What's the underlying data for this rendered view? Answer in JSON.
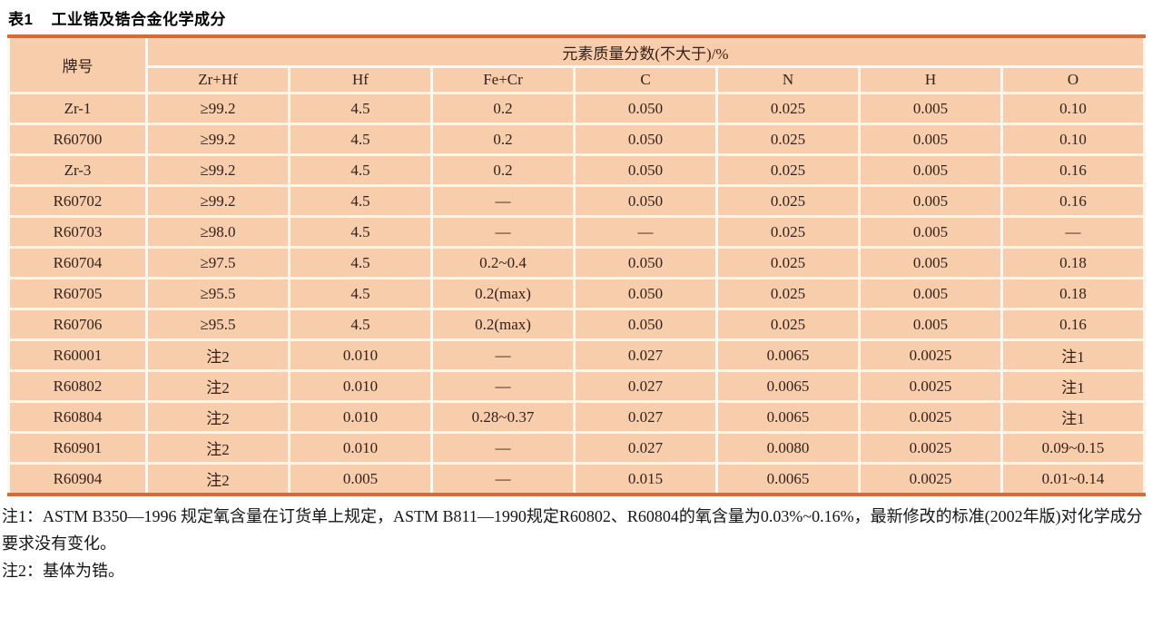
{
  "title": {
    "label": "表1",
    "caption": "工业锆及锆合金化学成分"
  },
  "table": {
    "row_header": "牌号",
    "group_header": "元素质量分数(不大于)/%",
    "columns": [
      "Zr+Hf",
      "Hf",
      "Fe+Cr",
      "C",
      "N",
      "H",
      "O"
    ],
    "rows": [
      {
        "grade": "Zr-1",
        "values": [
          "≥99.2",
          "4.5",
          "0.2",
          "0.050",
          "0.025",
          "0.005",
          "0.10"
        ]
      },
      {
        "grade": "R60700",
        "values": [
          "≥99.2",
          "4.5",
          "0.2",
          "0.050",
          "0.025",
          "0.005",
          "0.10"
        ]
      },
      {
        "grade": "Zr-3",
        "values": [
          "≥99.2",
          "4.5",
          "0.2",
          "0.050",
          "0.025",
          "0.005",
          "0.16"
        ]
      },
      {
        "grade": "R60702",
        "values": [
          "≥99.2",
          "4.5",
          "—",
          "0.050",
          "0.025",
          "0.005",
          "0.16"
        ]
      },
      {
        "grade": "R60703",
        "values": [
          "≥98.0",
          "4.5",
          "—",
          "—",
          "0.025",
          "0.005",
          "—"
        ]
      },
      {
        "grade": "R60704",
        "values": [
          "≥97.5",
          "4.5",
          "0.2~0.4",
          "0.050",
          "0.025",
          "0.005",
          "0.18"
        ]
      },
      {
        "grade": "R60705",
        "values": [
          "≥95.5",
          "4.5",
          "0.2(max)",
          "0.050",
          "0.025",
          "0.005",
          "0.18"
        ]
      },
      {
        "grade": "R60706",
        "values": [
          "≥95.5",
          "4.5",
          "0.2(max)",
          "0.050",
          "0.025",
          "0.005",
          "0.16"
        ]
      },
      {
        "grade": "R60001",
        "values": [
          "注2",
          "0.010",
          "—",
          "0.027",
          "0.0065",
          "0.0025",
          "注1"
        ]
      },
      {
        "grade": "R60802",
        "values": [
          "注2",
          "0.010",
          "—",
          "0.027",
          "0.0065",
          "0.0025",
          "注1"
        ]
      },
      {
        "grade": "R60804",
        "values": [
          "注2",
          "0.010",
          "0.28~0.37",
          "0.027",
          "0.0065",
          "0.0025",
          "注1"
        ]
      },
      {
        "grade": "R60901",
        "values": [
          "注2",
          "0.010",
          "—",
          "0.027",
          "0.0080",
          "0.0025",
          "0.09~0.15"
        ]
      },
      {
        "grade": "R60904",
        "values": [
          "注2",
          "0.005",
          "—",
          "0.015",
          "0.0065",
          "0.0025",
          "0.01~0.14"
        ]
      }
    ]
  },
  "notes": [
    "注1：ASTM B350—1996 规定氧含量在订货单上规定，ASTM B811—1990规定R60802、R60804的氧含量为0.03%~0.16%，最新修改的标准(2002年版)对化学成分要求没有变化。",
    "注2：基体为锆。"
  ],
  "colors": {
    "cell_background": "#f8cdac",
    "grid_line": "#fdf6ec",
    "table_rule": "#d8693a",
    "table_text": "#33211a",
    "note_text": "#141414"
  }
}
